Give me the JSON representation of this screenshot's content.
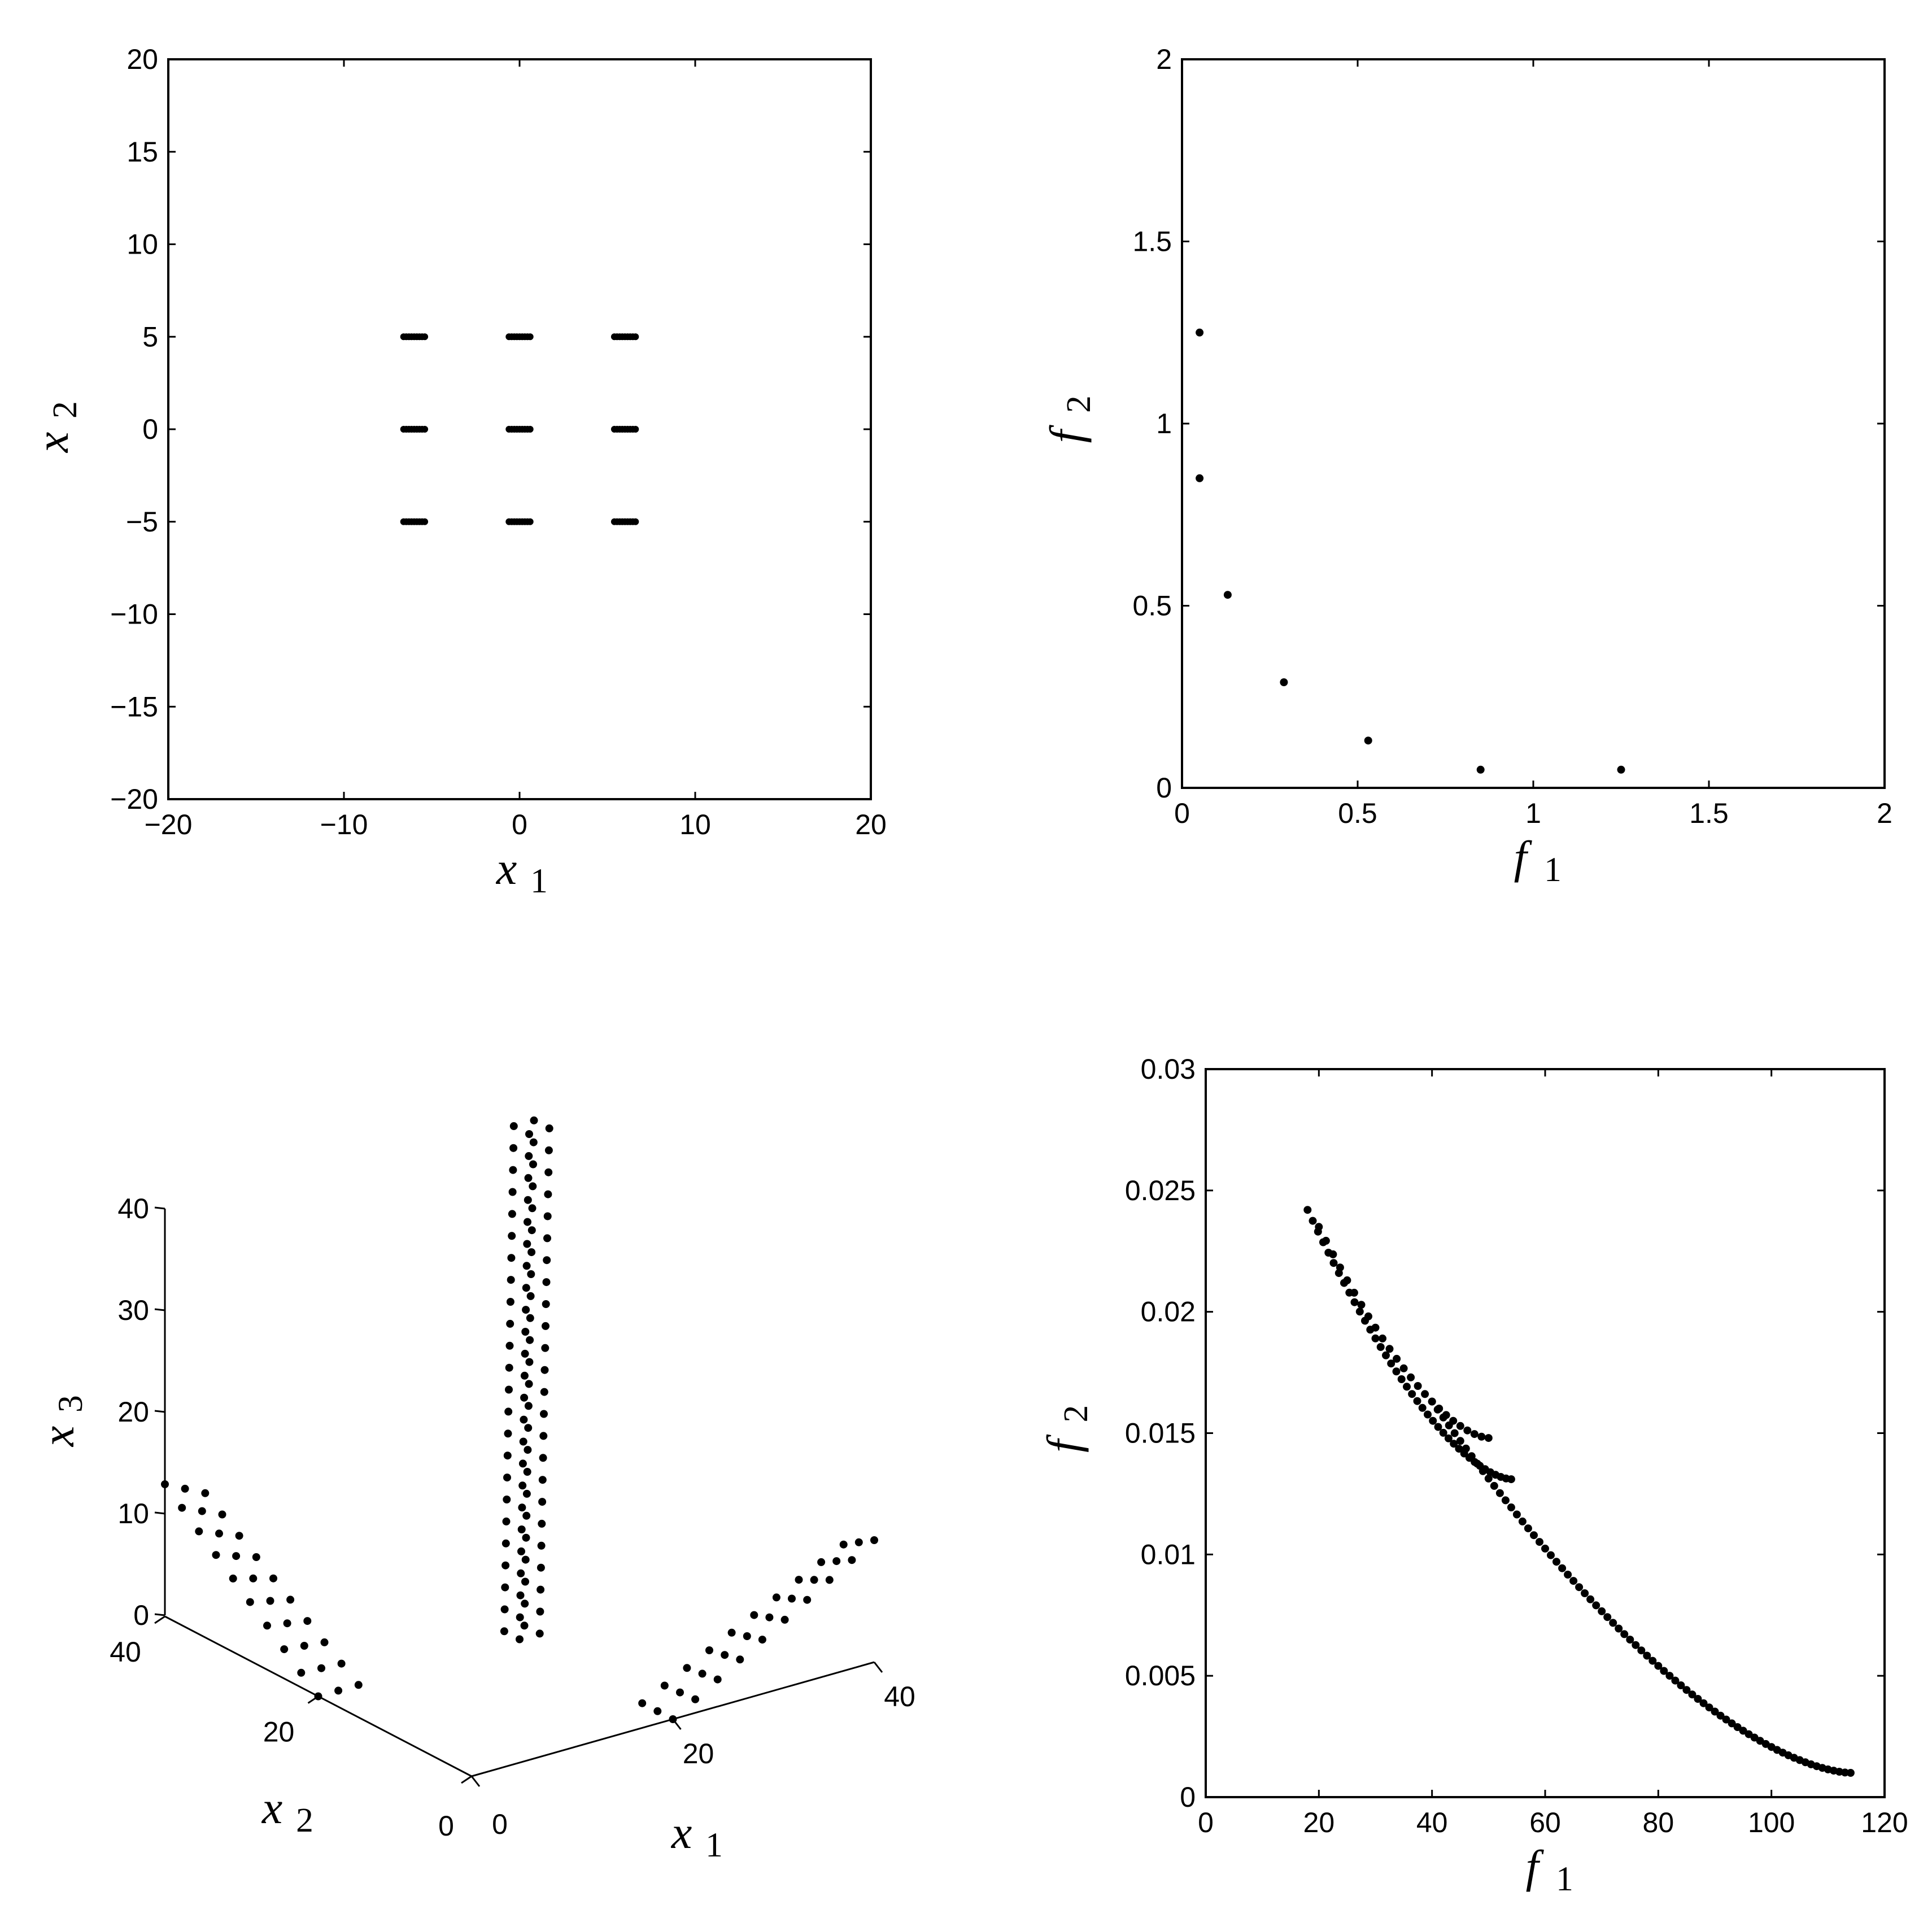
{
  "colors": {
    "marker": "#000000",
    "axis": "#000000",
    "background": "#ffffff"
  },
  "chart_data": [
    {
      "id": "tl",
      "type": "scatter",
      "title": "",
      "xlabel": {
        "var": "x",
        "sub": "1"
      },
      "ylabel": {
        "var": "x",
        "sub": "2"
      },
      "xlim": [
        -20,
        20
      ],
      "ylim": [
        -20,
        20
      ],
      "xticks": [
        -20,
        -10,
        0,
        10,
        20
      ],
      "xtick_labels": [
        "−20",
        "−10",
        "0",
        "10",
        "20"
      ],
      "yticks": [
        -20,
        -15,
        -10,
        -5,
        0,
        5,
        10,
        15,
        20
      ],
      "ytick_labels": [
        "−20",
        "−15",
        "−10",
        "−5",
        "0",
        "5",
        "10",
        "15",
        "20"
      ],
      "grid": false,
      "clusters": {
        "x_centers": [
          -6,
          0,
          6
        ],
        "y_centers": [
          -5,
          0,
          5
        ],
        "x_spread": [
          -0.6,
          0.6
        ],
        "points_per_cluster": 9
      }
    },
    {
      "id": "tr",
      "type": "scatter",
      "title": "",
      "xlabel": {
        "var": "f",
        "sub": "1"
      },
      "ylabel": {
        "var": "f",
        "sub": "2"
      },
      "xlim": [
        0,
        2
      ],
      "ylim": [
        0,
        2
      ],
      "xticks": [
        0,
        0.5,
        1,
        1.5,
        2
      ],
      "xtick_labels": [
        "0",
        "0.5",
        "1",
        "1.5",
        "2"
      ],
      "yticks": [
        0,
        0.5,
        1,
        1.5,
        2
      ],
      "ytick_labels": [
        "0",
        "0.5",
        "1",
        "1.5",
        "2"
      ],
      "grid": false,
      "points": [
        [
          0.05,
          1.25
        ],
        [
          0.05,
          0.85
        ],
        [
          0.13,
          0.53
        ],
        [
          0.29,
          0.29
        ],
        [
          0.53,
          0.13
        ],
        [
          0.85,
          0.05
        ],
        [
          1.25,
          0.05
        ]
      ]
    },
    {
      "id": "bl",
      "type": "scatter3d",
      "title": "",
      "xlabel": {
        "var": "x",
        "sub": "1"
      },
      "ylabel": {
        "var": "x",
        "sub": "2"
      },
      "zlabel": {
        "var": "x",
        "sub": "3"
      },
      "xlim": [
        0,
        40
      ],
      "ylim": [
        0,
        40
      ],
      "zlim": [
        0,
        40
      ],
      "xticks": [
        0,
        20,
        40
      ],
      "xtick_labels": [
        "0",
        "20",
        "40"
      ],
      "yticks": [
        0,
        20,
        40
      ],
      "ytick_labels": [
        "0",
        "20",
        "40"
      ],
      "zticks": [
        0,
        10,
        20,
        30,
        40
      ],
      "ztick_labels": [
        "0",
        "10",
        "20",
        "30",
        "40"
      ],
      "grid": false,
      "groups": [
        {
          "name": "",
          "points_per_line": 10,
          "lines": [
            {
              "from": [
                0,
                40,
                13
              ],
              "to": [
                0,
                20,
                0
              ]
            },
            {
              "from": [
                2,
                40,
                12
              ],
              "to": [
                2,
                20,
                0
              ]
            },
            {
              "from": [
                4,
                40,
                11
              ],
              "to": [
                4,
                20,
                0
              ]
            }
          ]
        },
        {
          "name": "",
          "points_per_line": 10,
          "lines": [
            {
              "from": [
                20,
                0,
                0
              ],
              "to": [
                40,
                0,
                12
              ]
            },
            {
              "from": [
                20,
                2,
                0
              ],
              "to": [
                40,
                2,
                11
              ]
            },
            {
              "from": [
                20,
                4,
                0
              ],
              "to": [
                40,
                4,
                10
              ]
            }
          ]
        },
        {
          "name": "",
          "points_per_line": 24,
          "lines": [
            {
              "from": [
                20,
                20,
                0
              ],
              "to": [
                24,
                24,
                47
              ]
            },
            {
              "from": [
                22,
                20,
                0
              ],
              "to": [
                26,
                24,
                47
              ]
            },
            {
              "from": [
                20,
                22,
                0
              ],
              "to": [
                24,
                26,
                47
              ]
            },
            {
              "from": [
                22,
                22,
                0
              ],
              "to": [
                26,
                26,
                47
              ]
            }
          ]
        }
      ]
    },
    {
      "id": "br",
      "type": "scatter",
      "title": "",
      "xlabel": {
        "var": "f",
        "sub": "1"
      },
      "ylabel": {
        "var": "f",
        "sub": "2"
      },
      "xlim": [
        0,
        120
      ],
      "ylim": [
        0,
        0.03
      ],
      "xticks": [
        0,
        20,
        40,
        60,
        80,
        100,
        120
      ],
      "xtick_labels": [
        "0",
        "20",
        "40",
        "60",
        "80",
        "100",
        "120"
      ],
      "yticks": [
        0,
        0.005,
        0.01,
        0.015,
        0.02,
        0.025,
        0.03
      ],
      "ytick_labels": [
        "0",
        "0.005",
        "0.01",
        "0.015",
        "0.02",
        "0.025",
        "0.03"
      ],
      "grid": false,
      "segments": [
        {
          "f1_range": [
            18,
            54
          ],
          "f2_range": [
            0.0242,
            0.0131
          ],
          "count": 40
        },
        {
          "f1_range": [
            40,
            114
          ],
          "f2_range": [
            0.0163,
            0.001
          ],
          "count": 75
        },
        {
          "f1_range": [
            20,
            50
          ],
          "f2_range": [
            0.0235,
            0.0148
          ],
          "count": 25
        }
      ]
    }
  ]
}
